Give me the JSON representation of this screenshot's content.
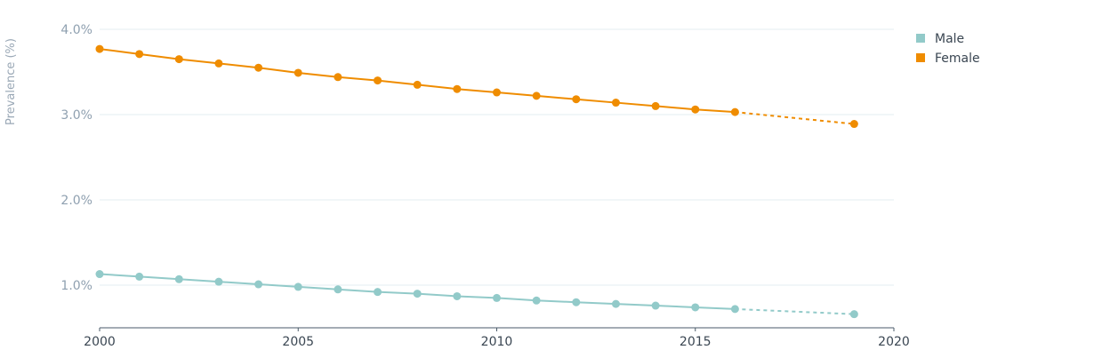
{
  "chart_data": {
    "type": "line",
    "title": "",
    "xlabel": "",
    "ylabel": "Prevalence (%)",
    "xlim": [
      2000,
      2020
    ],
    "ylim": [
      0.5,
      4.0
    ],
    "x_ticks": [
      "2000",
      "2005",
      "2010",
      "2015",
      "2020"
    ],
    "y_ticks": [
      "1.0%",
      "2.0%",
      "3.0%",
      "4.0%"
    ],
    "grid": "horizontal",
    "legend_position": "top-right",
    "series": [
      {
        "name": "Male",
        "color": "#92cac9",
        "x": [
          2000,
          2001,
          2002,
          2003,
          2004,
          2005,
          2006,
          2007,
          2008,
          2009,
          2010,
          2011,
          2012,
          2013,
          2014,
          2015,
          2016,
          2019
        ],
        "values": [
          1.13,
          1.1,
          1.07,
          1.04,
          1.01,
          0.98,
          0.95,
          0.92,
          0.9,
          0.87,
          0.85,
          0.82,
          0.8,
          0.78,
          0.76,
          0.74,
          0.72,
          0.66
        ],
        "projected_from_index": 16
      },
      {
        "name": "Female",
        "color": "#ef8c00",
        "x": [
          2000,
          2001,
          2002,
          2003,
          2004,
          2005,
          2006,
          2007,
          2008,
          2009,
          2010,
          2011,
          2012,
          2013,
          2014,
          2015,
          2016,
          2019
        ],
        "values": [
          3.77,
          3.71,
          3.65,
          3.6,
          3.55,
          3.49,
          3.44,
          3.4,
          3.35,
          3.3,
          3.26,
          3.22,
          3.18,
          3.14,
          3.1,
          3.06,
          3.03,
          2.89
        ],
        "projected_from_index": 16
      }
    ]
  }
}
